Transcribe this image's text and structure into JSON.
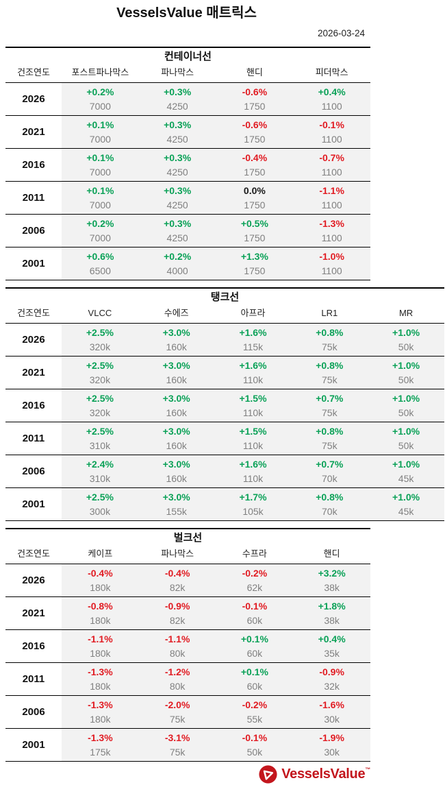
{
  "header": {
    "title": "VesselsValue 매트릭스",
    "date": "2026-03-24"
  },
  "colors": {
    "positive": "#0aa157",
    "negative": "#e11b22",
    "neutral": "#1a1a1a",
    "value_gray": "#808080",
    "cell_background": "#f2f2f2",
    "brand_red": "#c3161d"
  },
  "tables": [
    {
      "section_title": "컨테이너선",
      "year_header": "건조연도",
      "full_width": false,
      "columns": [
        "포스트파나막스",
        "파나막스",
        "핸디",
        "피더막스"
      ],
      "rows": [
        {
          "year": "2026",
          "cells": [
            {
              "pct": "+0.2%",
              "dir": "up",
              "value": "7000"
            },
            {
              "pct": "+0.3%",
              "dir": "up",
              "value": "4250"
            },
            {
              "pct": "-0.6%",
              "dir": "down",
              "value": "1750"
            },
            {
              "pct": "+0.4%",
              "dir": "up",
              "value": "1100"
            }
          ]
        },
        {
          "year": "2021",
          "cells": [
            {
              "pct": "+0.1%",
              "dir": "up",
              "value": "7000"
            },
            {
              "pct": "+0.3%",
              "dir": "up",
              "value": "4250"
            },
            {
              "pct": "-0.6%",
              "dir": "down",
              "value": "1750"
            },
            {
              "pct": "-0.1%",
              "dir": "down",
              "value": "1100"
            }
          ]
        },
        {
          "year": "2016",
          "cells": [
            {
              "pct": "+0.1%",
              "dir": "up",
              "value": "7000"
            },
            {
              "pct": "+0.3%",
              "dir": "up",
              "value": "4250"
            },
            {
              "pct": "-0.4%",
              "dir": "down",
              "value": "1750"
            },
            {
              "pct": "-0.7%",
              "dir": "down",
              "value": "1100"
            }
          ]
        },
        {
          "year": "2011",
          "cells": [
            {
              "pct": "+0.1%",
              "dir": "up",
              "value": "7000"
            },
            {
              "pct": "+0.3%",
              "dir": "up",
              "value": "4250"
            },
            {
              "pct": "0.0%",
              "dir": "flat",
              "value": "1750"
            },
            {
              "pct": "-1.1%",
              "dir": "down",
              "value": "1100"
            }
          ]
        },
        {
          "year": "2006",
          "cells": [
            {
              "pct": "+0.2%",
              "dir": "up",
              "value": "7000"
            },
            {
              "pct": "+0.3%",
              "dir": "up",
              "value": "4250"
            },
            {
              "pct": "+0.5%",
              "dir": "up",
              "value": "1750"
            },
            {
              "pct": "-1.3%",
              "dir": "down",
              "value": "1100"
            }
          ]
        },
        {
          "year": "2001",
          "cells": [
            {
              "pct": "+0.6%",
              "dir": "up",
              "value": "6500"
            },
            {
              "pct": "+0.2%",
              "dir": "up",
              "value": "4000"
            },
            {
              "pct": "+1.3%",
              "dir": "up",
              "value": "1750"
            },
            {
              "pct": "-1.0%",
              "dir": "down",
              "value": "1100"
            }
          ]
        }
      ]
    },
    {
      "section_title": "탱크선",
      "year_header": "건조연도",
      "full_width": true,
      "columns": [
        "VLCC",
        "수에즈",
        "아프라",
        "LR1",
        "MR"
      ],
      "rows": [
        {
          "year": "2026",
          "cells": [
            {
              "pct": "+2.5%",
              "dir": "up",
              "value": "320k"
            },
            {
              "pct": "+3.0%",
              "dir": "up",
              "value": "160k"
            },
            {
              "pct": "+1.6%",
              "dir": "up",
              "value": "115k"
            },
            {
              "pct": "+0.8%",
              "dir": "up",
              "value": "75k"
            },
            {
              "pct": "+1.0%",
              "dir": "up",
              "value": "50k"
            }
          ]
        },
        {
          "year": "2021",
          "cells": [
            {
              "pct": "+2.5%",
              "dir": "up",
              "value": "320k"
            },
            {
              "pct": "+3.0%",
              "dir": "up",
              "value": "160k"
            },
            {
              "pct": "+1.6%",
              "dir": "up",
              "value": "110k"
            },
            {
              "pct": "+0.8%",
              "dir": "up",
              "value": "75k"
            },
            {
              "pct": "+1.0%",
              "dir": "up",
              "value": "50k"
            }
          ]
        },
        {
          "year": "2016",
          "cells": [
            {
              "pct": "+2.5%",
              "dir": "up",
              "value": "320k"
            },
            {
              "pct": "+3.0%",
              "dir": "up",
              "value": "160k"
            },
            {
              "pct": "+1.5%",
              "dir": "up",
              "value": "110k"
            },
            {
              "pct": "+0.7%",
              "dir": "up",
              "value": "75k"
            },
            {
              "pct": "+1.0%",
              "dir": "up",
              "value": "50k"
            }
          ]
        },
        {
          "year": "2011",
          "cells": [
            {
              "pct": "+2.5%",
              "dir": "up",
              "value": "310k"
            },
            {
              "pct": "+3.0%",
              "dir": "up",
              "value": "160k"
            },
            {
              "pct": "+1.5%",
              "dir": "up",
              "value": "110k"
            },
            {
              "pct": "+0.8%",
              "dir": "up",
              "value": "75k"
            },
            {
              "pct": "+1.0%",
              "dir": "up",
              "value": "50k"
            }
          ]
        },
        {
          "year": "2006",
          "cells": [
            {
              "pct": "+2.4%",
              "dir": "up",
              "value": "310k"
            },
            {
              "pct": "+3.0%",
              "dir": "up",
              "value": "160k"
            },
            {
              "pct": "+1.6%",
              "dir": "up",
              "value": "110k"
            },
            {
              "pct": "+0.7%",
              "dir": "up",
              "value": "70k"
            },
            {
              "pct": "+1.0%",
              "dir": "up",
              "value": "45k"
            }
          ]
        },
        {
          "year": "2001",
          "cells": [
            {
              "pct": "+2.5%",
              "dir": "up",
              "value": "300k"
            },
            {
              "pct": "+3.0%",
              "dir": "up",
              "value": "155k"
            },
            {
              "pct": "+1.7%",
              "dir": "up",
              "value": "105k"
            },
            {
              "pct": "+0.8%",
              "dir": "up",
              "value": "70k"
            },
            {
              "pct": "+1.0%",
              "dir": "up",
              "value": "45k"
            }
          ]
        }
      ]
    },
    {
      "section_title": "벌크선",
      "year_header": "건조연도",
      "full_width": false,
      "columns": [
        "케이프",
        "파나막스",
        "수프라",
        "핸디"
      ],
      "rows": [
        {
          "year": "2026",
          "cells": [
            {
              "pct": "-0.4%",
              "dir": "down",
              "value": "180k"
            },
            {
              "pct": "-0.4%",
              "dir": "down",
              "value": "82k"
            },
            {
              "pct": "-0.2%",
              "dir": "down",
              "value": "62k"
            },
            {
              "pct": "+3.2%",
              "dir": "up",
              "value": "38k"
            }
          ]
        },
        {
          "year": "2021",
          "cells": [
            {
              "pct": "-0.8%",
              "dir": "down",
              "value": "180k"
            },
            {
              "pct": "-0.9%",
              "dir": "down",
              "value": "82k"
            },
            {
              "pct": "-0.1%",
              "dir": "down",
              "value": "60k"
            },
            {
              "pct": "+1.8%",
              "dir": "up",
              "value": "38k"
            }
          ]
        },
        {
          "year": "2016",
          "cells": [
            {
              "pct": "-1.1%",
              "dir": "down",
              "value": "180k"
            },
            {
              "pct": "-1.1%",
              "dir": "down",
              "value": "80k"
            },
            {
              "pct": "+0.1%",
              "dir": "up",
              "value": "60k"
            },
            {
              "pct": "+0.4%",
              "dir": "up",
              "value": "35k"
            }
          ]
        },
        {
          "year": "2011",
          "cells": [
            {
              "pct": "-1.3%",
              "dir": "down",
              "value": "180k"
            },
            {
              "pct": "-1.2%",
              "dir": "down",
              "value": "80k"
            },
            {
              "pct": "+0.1%",
              "dir": "up",
              "value": "60k"
            },
            {
              "pct": "-0.9%",
              "dir": "down",
              "value": "32k"
            }
          ]
        },
        {
          "year": "2006",
          "cells": [
            {
              "pct": "-1.3%",
              "dir": "down",
              "value": "180k"
            },
            {
              "pct": "-2.0%",
              "dir": "down",
              "value": "75k"
            },
            {
              "pct": "-0.2%",
              "dir": "down",
              "value": "55k"
            },
            {
              "pct": "-1.6%",
              "dir": "down",
              "value": "30k"
            }
          ]
        },
        {
          "year": "2001",
          "cells": [
            {
              "pct": "-1.3%",
              "dir": "down",
              "value": "175k"
            },
            {
              "pct": "-3.1%",
              "dir": "down",
              "value": "75k"
            },
            {
              "pct": "-0.1%",
              "dir": "down",
              "value": "50k"
            },
            {
              "pct": "-1.9%",
              "dir": "down",
              "value": "30k"
            }
          ]
        }
      ]
    }
  ],
  "footer": {
    "logo_text": "VesselsValue",
    "trademark": "™"
  }
}
